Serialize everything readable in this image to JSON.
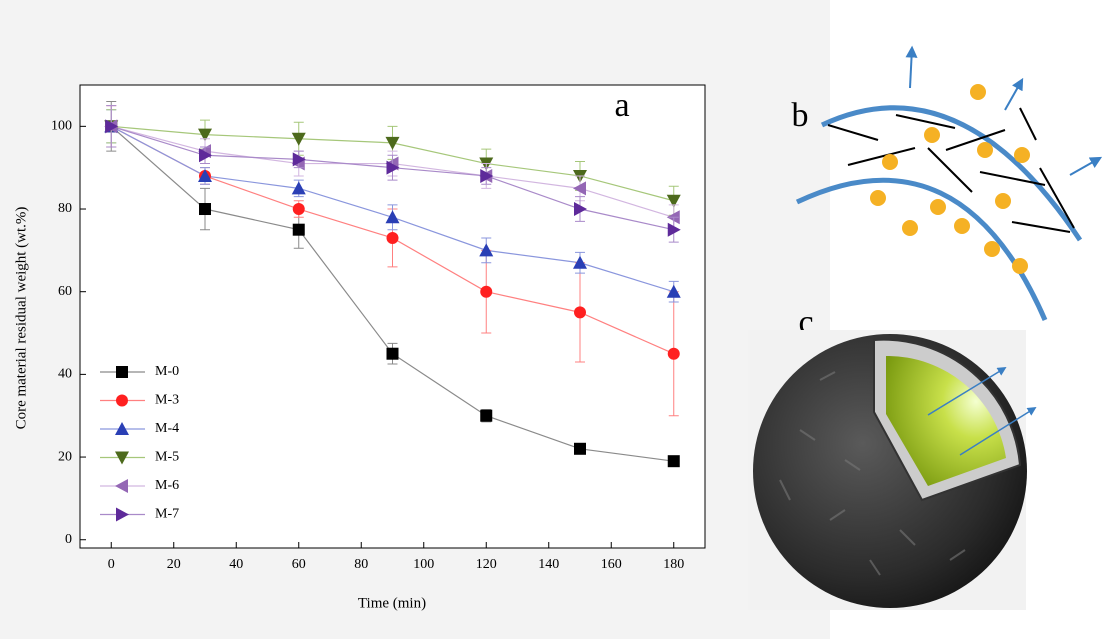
{
  "chart_data": {
    "type": "line",
    "annotation": "a",
    "x_label": "Time (min)",
    "y_label": "Core material residual weight (wt.%)",
    "x": [
      0,
      30,
      60,
      90,
      120,
      150,
      180
    ],
    "xlim": [
      -10,
      190
    ],
    "xticks": [
      0,
      20,
      40,
      60,
      80,
      100,
      120,
      140,
      160,
      180
    ],
    "ylim": [
      -2,
      110
    ],
    "yticks": [
      0,
      20,
      40,
      60,
      80,
      100
    ],
    "legend": "lower left",
    "series": [
      {
        "name": "M-0",
        "color": "#000000",
        "line_color": "#8a8a8a",
        "marker": "square",
        "values": [
          100,
          80,
          75,
          45,
          30,
          22,
          19
        ],
        "errors": [
          6,
          5,
          4.5,
          2.5,
          1.5,
          0.5,
          0.5
        ]
      },
      {
        "name": "M-3",
        "color": "#ff2020",
        "line_color": "#ff8080",
        "marker": "circle",
        "values": [
          100,
          88,
          80,
          73,
          60,
          55,
          45
        ],
        "errors": [
          5,
          2,
          2,
          7,
          10,
          12,
          15
        ]
      },
      {
        "name": "M-4",
        "color": "#2a3fb5",
        "line_color": "#8a96dd",
        "marker": "triangle-up",
        "values": [
          100,
          88,
          85,
          78,
          70,
          67,
          60
        ],
        "errors": [
          4,
          2,
          2,
          3,
          3,
          2.5,
          2.5
        ]
      },
      {
        "name": "M-5",
        "color": "#4d6a1c",
        "line_color": "#a6c77a",
        "marker": "triangle-down",
        "values": [
          100,
          98,
          97,
          96,
          91,
          88,
          82
        ],
        "errors": [
          4,
          3.5,
          4,
          4,
          3.5,
          3.5,
          3.5
        ]
      },
      {
        "name": "M-6",
        "color": "#9467b5",
        "line_color": "#d2b6e0",
        "marker": "triangle-left",
        "values": [
          100,
          94,
          91,
          91,
          88,
          85,
          78
        ],
        "errors": [
          5,
          3,
          3,
          3,
          3,
          3,
          3
        ]
      },
      {
        "name": "M-7",
        "color": "#5e2a9a",
        "line_color": "#a98ac9",
        "marker": "triangle-right",
        "values": [
          100,
          93,
          92,
          90,
          88,
          80,
          75
        ],
        "errors": [
          5,
          2,
          2,
          3,
          2,
          3,
          3
        ]
      }
    ]
  },
  "panel_labels": [
    "b",
    "c"
  ]
}
